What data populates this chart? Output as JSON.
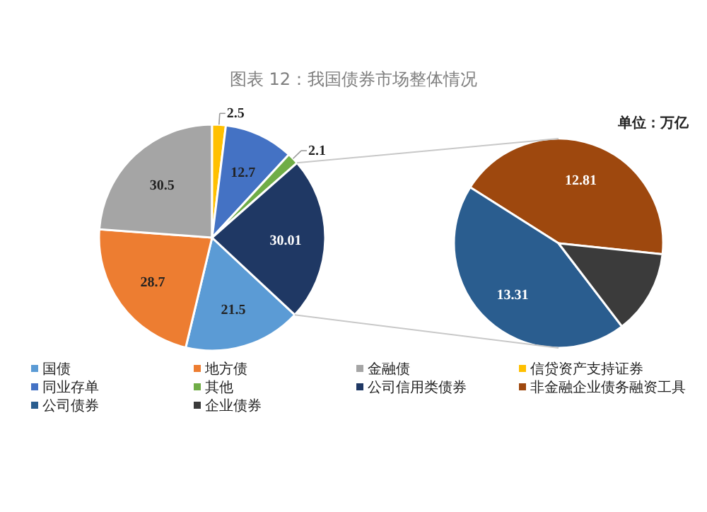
{
  "chart_data": [
    {
      "type": "pie",
      "title": "图表 12：我国债券市场整体情况",
      "annotations": [
        "单位：万亿"
      ],
      "categories": [
        "国债",
        "地方债",
        "金融债",
        "信贷资产支持证券",
        "同业存单",
        "其他",
        "公司信用类债券"
      ],
      "values": [
        21.5,
        28.7,
        30.5,
        2.5,
        12.7,
        2.1,
        30.01
      ],
      "colors": [
        "#5b9bd5",
        "#ed7d31",
        "#a5a5a5",
        "#ffc000",
        "#4472c4",
        "#70ad47",
        "#1f3864"
      ],
      "data_labels": true,
      "legend": "bottom"
    },
    {
      "type": "pie",
      "categories": [
        "非金融企业债务融资工具",
        "公司债券",
        "企业债券"
      ],
      "values": [
        12.81,
        13.31,
        3.89
      ],
      "value_labels": [
        "12.81",
        "13.31",
        null
      ],
      "colors": [
        "#9e480e",
        "#2a5d8f",
        "#3b3b3b"
      ],
      "legend": "bottom"
    }
  ]
}
